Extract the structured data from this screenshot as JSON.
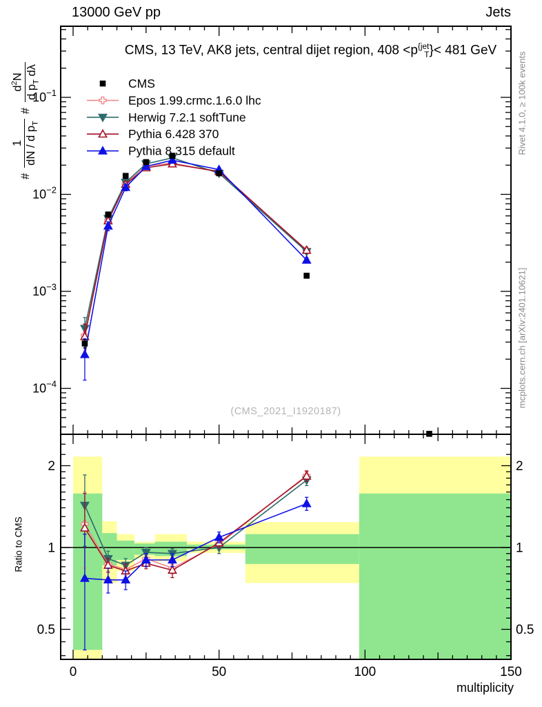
{
  "header": {
    "left": "13000 GeV pp",
    "right": "Jets"
  },
  "plot_title": {
    "pre": "CMS, 13 TeV, AK8 jets, central dijet region, 408 <p",
    "sup": "{jet",
    "sub": "T",
    "post": "}< 481 GeV"
  },
  "watermark": "(CMS_2021_I1920187)",
  "right_notes": {
    "top": "Rivet 4.1.0, ≥ 100k events",
    "bottom": "mcplots.cern.ch [arXiv:2401.10621]"
  },
  "ylabel_main": {
    "hash1": "#",
    "num1": "1",
    "den1_a": "dN / d p",
    "den1_sub": "T",
    "hash2": "#",
    "num2_a": "d",
    "num2_sup": "2",
    "num2_b": "N",
    "den2_a": "d p",
    "den2_sub": "T",
    "den2_b": " dλ"
  },
  "ylabel_ratio": "Ratio to CMS",
  "xlabel": "multiplicity",
  "chart_data": {
    "type": "line",
    "title": "CMS, 13 TeV, AK8 jets, central dijet region, 408 < pT(jet) < 481 GeV",
    "xlabel": "multiplicity",
    "x_axis": {
      "min": -4.25,
      "max": 150,
      "minor_step": 5,
      "medium_step": 25,
      "ticks": [
        {
          "v": 0,
          "label": "0"
        },
        {
          "v": 50,
          "label": "50"
        },
        {
          "v": 100,
          "label": "100"
        },
        {
          "v": 150,
          "label": "150"
        }
      ]
    },
    "y_main": {
      "scale": "log",
      "min": 3.4e-05,
      "max": 0.54,
      "ticks": [
        {
          "v": 0.1,
          "base": "10",
          "exp": "−1"
        },
        {
          "v": 0.01,
          "base": "10",
          "exp": "−2"
        },
        {
          "v": 0.001,
          "base": "10",
          "exp": "−3"
        },
        {
          "v": 0.0001,
          "base": "10",
          "exp": "−4"
        }
      ]
    },
    "y_ratio": {
      "scale": "log",
      "min": 0.388,
      "max": 2.59,
      "ticks": [
        {
          "v": 2,
          "label": "2"
        },
        {
          "v": 1,
          "label": "1"
        },
        {
          "v": 0.5,
          "label": "0.5"
        }
      ]
    },
    "band_colors": {
      "yellow": "#ffffa0",
      "green": "#8fe68f"
    },
    "bands": [
      {
        "x0": 0,
        "x1": 10,
        "yellow": [
          0.385,
          2.16
        ],
        "green": [
          0.42,
          1.58
        ]
      },
      {
        "x0": 10,
        "x1": 15,
        "yellow": [
          0.74,
          1.25
        ],
        "green": [
          0.86,
          1.13
        ]
      },
      {
        "x0": 15,
        "x1": 21,
        "yellow": [
          0.82,
          1.12
        ],
        "green": [
          0.9,
          1.06
        ]
      },
      {
        "x0": 21,
        "x1": 28,
        "yellow": [
          0.91,
          1.05
        ],
        "green": [
          0.94,
          1.035
        ]
      },
      {
        "x0": 28,
        "x1": 39,
        "yellow": [
          0.89,
          1.12
        ],
        "green": [
          0.93,
          1.05
        ]
      },
      {
        "x0": 39,
        "x1": 59,
        "yellow": [
          0.955,
          1.05
        ],
        "green": [
          0.985,
          1.025
        ]
      },
      {
        "x0": 59,
        "x1": 98,
        "yellow": [
          0.74,
          1.24
        ],
        "green": [
          0.87,
          1.12
        ]
      },
      {
        "x0": 98,
        "x1": 150,
        "yellow": [
          0.385,
          2.16
        ],
        "green": [
          0.385,
          1.58
        ]
      }
    ],
    "series": [
      {
        "name": "CMS",
        "color": "#000000",
        "marker": "square",
        "open": false,
        "line": false,
        "in_ratio": false,
        "x": [
          4,
          12,
          18,
          25,
          34,
          50,
          80,
          122
        ],
        "y": [
          0.00029,
          0.0062,
          0.0155,
          0.0215,
          0.025,
          0.0165,
          0.00145,
          3.4e-05
        ],
        "ratio": [
          1,
          1,
          1,
          1,
          1,
          1,
          1,
          1
        ],
        "rerr": [
          0.1,
          0,
          0,
          0,
          0,
          0,
          0.05,
          0
        ]
      },
      {
        "name": "Epos 1.99.crmc.1.6.0 lhc",
        "color": "#f08a8a",
        "marker": "cross",
        "open": true,
        "line": true,
        "in_ratio": true,
        "x": [
          4,
          12,
          18,
          25,
          34,
          50,
          80
        ],
        "y": [
          0.000354,
          0.00539,
          0.0129,
          0.0196,
          0.021,
          0.017,
          0.00267
        ],
        "ratio": [
          1.22,
          0.87,
          0.83,
          0.91,
          0.84,
          1.03,
          1.84
        ],
        "rerr": [
          0.38,
          0.05,
          0.04,
          0.04,
          0.04,
          0.04,
          0.08
        ]
      },
      {
        "name": "Herwig 7.2.1 softTune",
        "color": "#2e6b6b",
        "marker": "triangle-down",
        "open": false,
        "line": true,
        "in_ratio": true,
        "x": [
          4,
          12,
          18,
          25,
          34,
          50,
          80
        ],
        "y": [
          0.000415,
          0.00564,
          0.0133,
          0.0206,
          0.0238,
          0.0165,
          0.00257
        ],
        "ratio": [
          1.43,
          0.91,
          0.86,
          0.96,
          0.95,
          1.0,
          1.77
        ],
        "rerr": [
          0.42,
          0.06,
          0.05,
          0.04,
          0.04,
          0.05,
          0.08
        ]
      },
      {
        "name": "Pythia 6.428 370",
        "color": "#a31227",
        "marker": "triangle-up",
        "open": true,
        "line": true,
        "in_ratio": true,
        "x": [
          4,
          12,
          18,
          25,
          34,
          50,
          80
        ],
        "y": [
          0.000342,
          0.00533,
          0.0127,
          0.0188,
          0.0206,
          0.0172,
          0.00265
        ],
        "ratio": [
          1.18,
          0.86,
          0.82,
          0.875,
          0.825,
          1.04,
          1.83
        ],
        "rerr": [
          0.4,
          0.05,
          0.05,
          0.04,
          0.05,
          0.04,
          0.08
        ]
      },
      {
        "name": "Pythia 8.315 default",
        "color": "#0e10e6",
        "marker": "triangle-up",
        "open": false,
        "line": true,
        "in_ratio": true,
        "x": [
          4,
          12,
          18,
          25,
          34,
          50,
          80
        ],
        "y": [
          0.000223,
          0.00471,
          0.0118,
          0.0194,
          0.0225,
          0.018,
          0.0021
        ],
        "ratio": [
          0.77,
          0.76,
          0.76,
          0.9,
          0.9,
          1.09,
          1.45
        ],
        "rerr": [
          0.35,
          0.08,
          0.06,
          0.05,
          0.05,
          0.05,
          0.08
        ]
      }
    ]
  }
}
